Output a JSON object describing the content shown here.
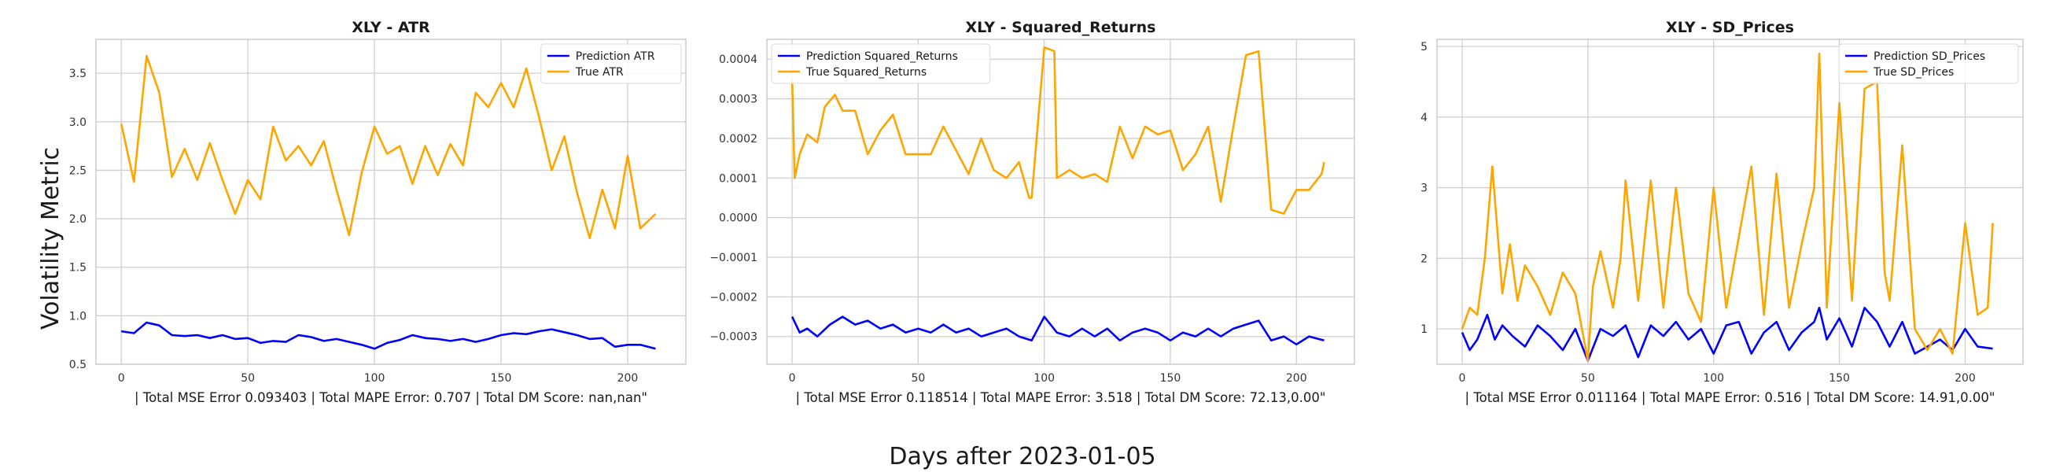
{
  "figure": {
    "ylabel": "Volatility Metric",
    "xlabel": "Days after 2023-01-05"
  },
  "colors": {
    "prediction": "#0000ff",
    "true": "#ffa500"
  },
  "chart_data": [
    {
      "type": "line",
      "title": "XLY - ATR",
      "xlabel": "| Total MSE Error 0.093403 | Total MAPE Error: 0.707 | Total DM Score: nan,nan\"",
      "ylabel": "Volatility Metric",
      "xlim": [
        -10,
        223
      ],
      "ylim": [
        0.5,
        3.85
      ],
      "xticks": [
        0,
        50,
        100,
        150,
        200
      ],
      "yticks": [
        0.5,
        1.0,
        1.5,
        2.0,
        2.5,
        3.0,
        3.5
      ],
      "ytick_labels": [
        "0.5",
        "1.0",
        "1.5",
        "2.0",
        "2.5",
        "3.0",
        "3.5"
      ],
      "grid": true,
      "legend_position": "top-right",
      "series": [
        {
          "name": "Prediction ATR",
          "color": "#0000ff",
          "x": [
            0,
            5,
            10,
            15,
            20,
            25,
            30,
            35,
            40,
            45,
            50,
            55,
            60,
            65,
            70,
            75,
            80,
            85,
            90,
            95,
            100,
            105,
            110,
            115,
            120,
            125,
            130,
            135,
            140,
            145,
            150,
            155,
            160,
            165,
            170,
            175,
            180,
            185,
            190,
            195,
            200,
            205,
            211
          ],
          "y": [
            0.84,
            0.82,
            0.93,
            0.9,
            0.8,
            0.79,
            0.8,
            0.77,
            0.8,
            0.76,
            0.77,
            0.72,
            0.74,
            0.73,
            0.8,
            0.78,
            0.74,
            0.76,
            0.73,
            0.7,
            0.66,
            0.72,
            0.75,
            0.8,
            0.77,
            0.76,
            0.74,
            0.76,
            0.73,
            0.76,
            0.8,
            0.82,
            0.81,
            0.84,
            0.86,
            0.83,
            0.8,
            0.76,
            0.77,
            0.68,
            0.7,
            0.7,
            0.66
          ]
        },
        {
          "name": "True ATR",
          "color": "#ffa500",
          "x": [
            0,
            5,
            10,
            15,
            20,
            25,
            30,
            35,
            40,
            45,
            50,
            55,
            60,
            65,
            70,
            75,
            80,
            85,
            90,
            95,
            100,
            105,
            110,
            115,
            120,
            125,
            130,
            135,
            140,
            145,
            150,
            155,
            160,
            165,
            170,
            175,
            180,
            185,
            190,
            195,
            200,
            205,
            211
          ],
          "y": [
            2.98,
            2.38,
            3.68,
            3.3,
            2.43,
            2.72,
            2.4,
            2.78,
            2.4,
            2.05,
            2.4,
            2.2,
            2.95,
            2.6,
            2.75,
            2.55,
            2.8,
            2.3,
            1.83,
            2.48,
            2.95,
            2.67,
            2.75,
            2.36,
            2.75,
            2.45,
            2.77,
            2.55,
            3.3,
            3.15,
            3.4,
            3.15,
            3.55,
            3.05,
            2.5,
            2.85,
            2.27,
            1.8,
            2.3,
            1.9,
            2.65,
            1.9,
            2.05
          ]
        }
      ]
    },
    {
      "type": "line",
      "title": "XLY - Squared_Returns",
      "xlabel": "| Total MSE Error 0.118514 | Total MAPE Error: 3.518 | Total DM Score: 72.13,0.00\"",
      "ylabel": "",
      "xlim": [
        -10,
        223
      ],
      "ylim": [
        -0.00037,
        0.00045
      ],
      "xticks": [
        0,
        50,
        100,
        150,
        200
      ],
      "yticks": [
        -0.0003,
        -0.0002,
        -0.0001,
        0.0,
        0.0001,
        0.0002,
        0.0003,
        0.0004
      ],
      "ytick_labels": [
        "−0.0003",
        "−0.0002",
        "−0.0001",
        "0.0000",
        "0.0001",
        "0.0002",
        "0.0003",
        "0.0004"
      ],
      "grid": true,
      "legend_position": "top-left",
      "series": [
        {
          "name": "Prediction Squared_Returns",
          "color": "#0000ff",
          "x": [
            0,
            3,
            6,
            10,
            15,
            20,
            25,
            30,
            35,
            40,
            45,
            50,
            55,
            60,
            65,
            70,
            75,
            80,
            85,
            90,
            95,
            100,
            105,
            110,
            115,
            120,
            125,
            130,
            135,
            140,
            145,
            150,
            155,
            160,
            165,
            170,
            175,
            180,
            185,
            190,
            195,
            200,
            205,
            211
          ],
          "y": [
            -0.00025,
            -0.00029,
            -0.00028,
            -0.0003,
            -0.00027,
            -0.00025,
            -0.00027,
            -0.00026,
            -0.00028,
            -0.00027,
            -0.00029,
            -0.00028,
            -0.00029,
            -0.00027,
            -0.00029,
            -0.00028,
            -0.0003,
            -0.00029,
            -0.00028,
            -0.0003,
            -0.00031,
            -0.00025,
            -0.00029,
            -0.0003,
            -0.00028,
            -0.0003,
            -0.00028,
            -0.00031,
            -0.00029,
            -0.00028,
            -0.00029,
            -0.00031,
            -0.00029,
            -0.0003,
            -0.00028,
            -0.0003,
            -0.00028,
            -0.00027,
            -0.00026,
            -0.00031,
            -0.0003,
            -0.00032,
            -0.0003,
            -0.00031
          ]
        },
        {
          "name": "True Squared_Returns",
          "color": "#ffa500",
          "x": [
            0,
            1,
            3,
            6,
            10,
            13,
            17,
            20,
            25,
            30,
            35,
            40,
            45,
            50,
            55,
            60,
            65,
            70,
            75,
            80,
            85,
            90,
            94,
            95,
            100,
            104,
            105,
            110,
            115,
            120,
            125,
            130,
            135,
            140,
            145,
            150,
            155,
            160,
            165,
            170,
            175,
            180,
            185,
            190,
            195,
            200,
            205,
            210,
            211
          ],
          "y": [
            0.00035,
            0.0001,
            0.00016,
            0.00021,
            0.00019,
            0.00028,
            0.00031,
            0.00027,
            0.00027,
            0.00016,
            0.00022,
            0.00026,
            0.00016,
            0.00016,
            0.00016,
            0.00023,
            0.00017,
            0.00011,
            0.0002,
            0.00012,
            0.0001,
            0.00014,
            5e-05,
            5e-05,
            0.00043,
            0.00042,
            0.0001,
            0.00012,
            0.0001,
            0.00011,
            9e-05,
            0.00023,
            0.00015,
            0.00023,
            0.00021,
            0.00022,
            0.00012,
            0.00016,
            0.00023,
            4e-05,
            0.00023,
            0.00041,
            0.00042,
            2e-05,
            1e-05,
            7e-05,
            7e-05,
            0.00011,
            0.00014
          ]
        }
      ]
    },
    {
      "type": "line",
      "title": "XLY - SD_Prices",
      "xlabel": "| Total MSE Error 0.011164 | Total MAPE Error: 0.516 | Total DM Score: 14.91,0.00\"",
      "ylabel": "",
      "xlim": [
        -10,
        223
      ],
      "ylim": [
        0.5,
        5.1
      ],
      "xticks": [
        0,
        50,
        100,
        150,
        200
      ],
      "yticks": [
        1,
        2,
        3,
        4,
        5
      ],
      "ytick_labels": [
        "1",
        "2",
        "3",
        "4",
        "5"
      ],
      "grid": true,
      "legend_position": "top-right",
      "series": [
        {
          "name": "Prediction SD_Prices",
          "color": "#0000ff",
          "x": [
            0,
            3,
            6,
            10,
            13,
            16,
            20,
            25,
            30,
            35,
            40,
            45,
            50,
            55,
            60,
            65,
            70,
            75,
            80,
            85,
            90,
            95,
            100,
            105,
            110,
            115,
            120,
            125,
            130,
            135,
            140,
            142,
            145,
            150,
            155,
            160,
            165,
            170,
            175,
            180,
            185,
            190,
            195,
            200,
            205,
            211
          ],
          "y": [
            0.95,
            0.7,
            0.85,
            1.2,
            0.85,
            1.05,
            0.9,
            0.75,
            1.05,
            0.9,
            0.7,
            1.0,
            0.55,
            1.0,
            0.9,
            1.05,
            0.6,
            1.05,
            0.9,
            1.1,
            0.85,
            1.0,
            0.65,
            1.05,
            1.1,
            0.65,
            0.95,
            1.1,
            0.7,
            0.95,
            1.1,
            1.3,
            0.85,
            1.15,
            0.75,
            1.3,
            1.1,
            0.75,
            1.1,
            0.65,
            0.75,
            0.85,
            0.7,
            1.0,
            0.75,
            0.72
          ]
        },
        {
          "name": "True SD_Prices",
          "color": "#ffa500",
          "x": [
            0,
            3,
            6,
            9,
            12,
            16,
            19,
            22,
            25,
            30,
            35,
            40,
            45,
            50,
            52,
            55,
            60,
            63,
            65,
            70,
            75,
            80,
            85,
            90,
            95,
            100,
            105,
            110,
            115,
            120,
            125,
            130,
            135,
            140,
            142,
            145,
            150,
            155,
            160,
            165,
            168,
            170,
            175,
            180,
            185,
            190,
            195,
            200,
            205,
            209,
            211
          ],
          "y": [
            1.0,
            1.3,
            1.2,
            2.0,
            3.3,
            1.5,
            2.2,
            1.4,
            1.9,
            1.6,
            1.2,
            1.8,
            1.5,
            0.55,
            1.6,
            2.1,
            1.3,
            2.0,
            3.1,
            1.4,
            3.1,
            1.3,
            3.0,
            1.5,
            1.1,
            3.0,
            1.3,
            2.3,
            3.3,
            1.2,
            3.2,
            1.3,
            2.2,
            3.0,
            4.9,
            1.3,
            4.2,
            1.4,
            4.4,
            4.5,
            1.8,
            1.4,
            3.6,
            1.0,
            0.7,
            1.0,
            0.65,
            2.5,
            1.2,
            1.3,
            2.5
          ]
        }
      ]
    }
  ]
}
